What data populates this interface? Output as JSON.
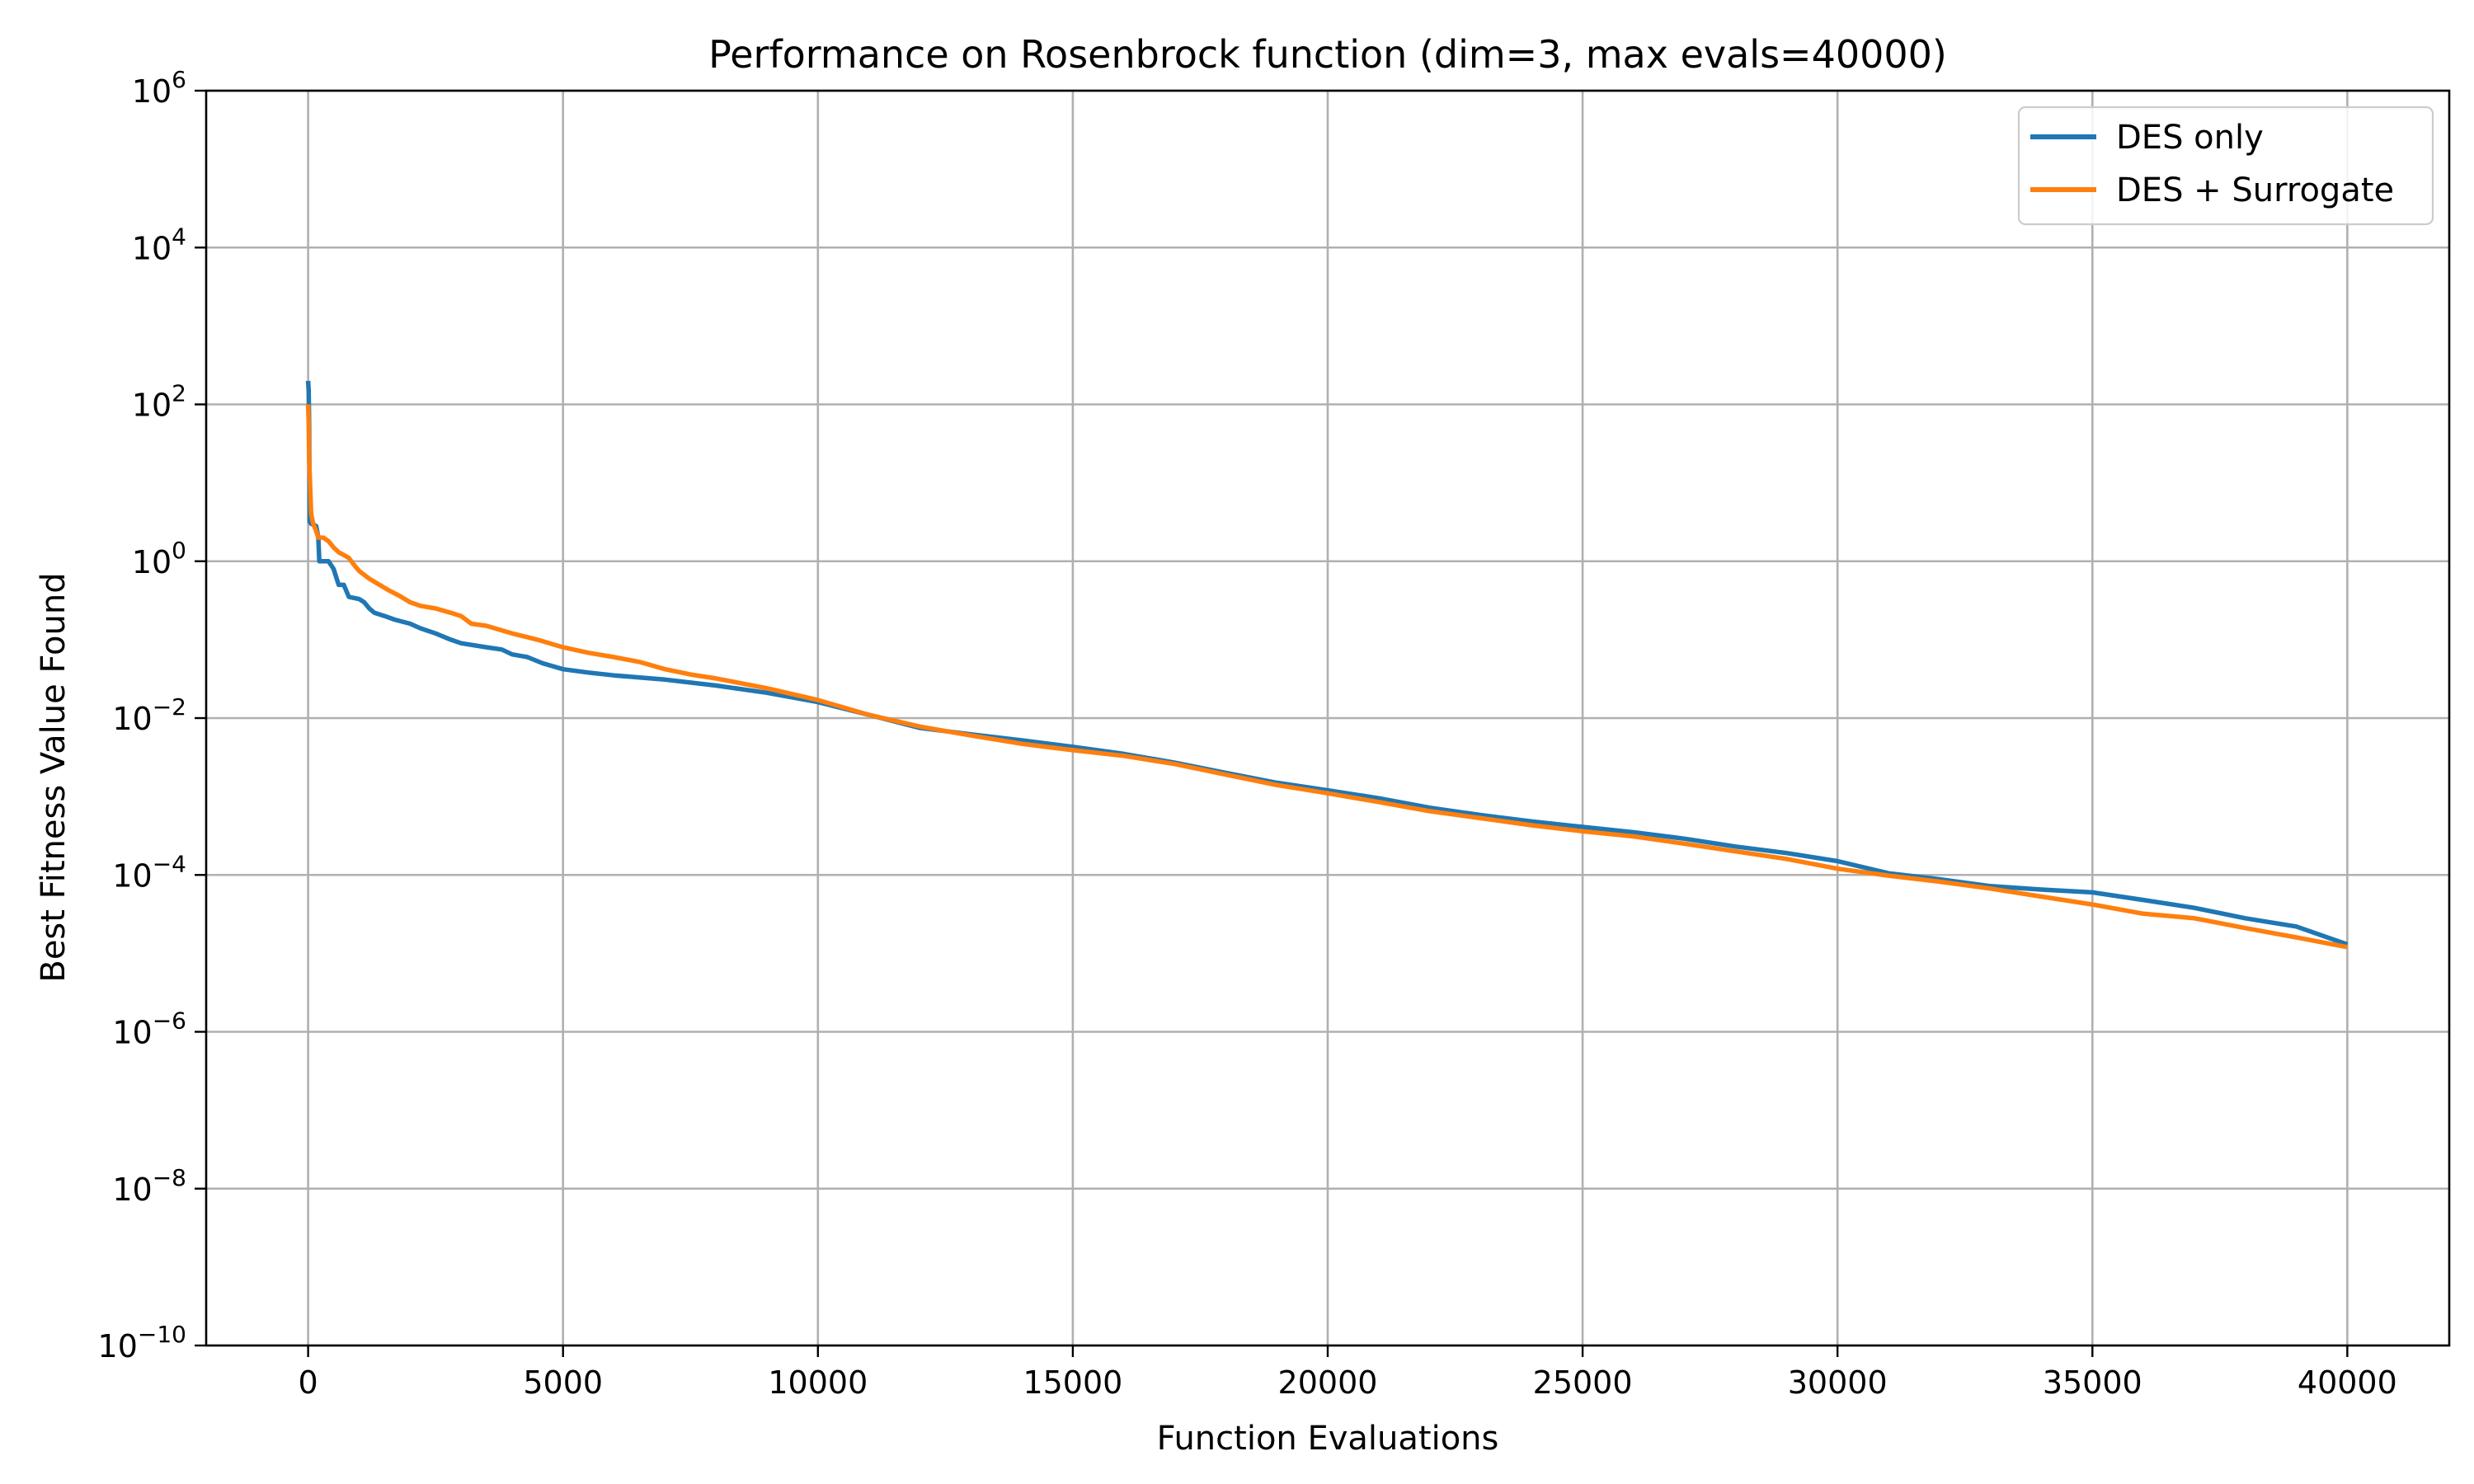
{
  "chart_data": {
    "type": "line",
    "title": "Performance on Rosenbrock function (dim=3, max evals=40000)",
    "xlabel": "Function Evaluations",
    "ylabel": "Best Fitness Value Found",
    "xscale": "linear",
    "yscale": "log",
    "xlim": [
      -2000,
      42000
    ],
    "ylim": [
      1e-10,
      1000000.0
    ],
    "grid": true,
    "legend_position": "top-right",
    "x_ticks": [
      0,
      5000,
      10000,
      15000,
      20000,
      25000,
      30000,
      35000,
      40000
    ],
    "x_tick_labels": [
      "0",
      "5000",
      "10000",
      "15000",
      "20000",
      "25000",
      "30000",
      "35000",
      "40000"
    ],
    "y_ticks": [
      {
        "exp": -10,
        "base": "10",
        "sup": "−10"
      },
      {
        "exp": -8,
        "base": "10",
        "sup": "−8"
      },
      {
        "exp": -6,
        "base": "10",
        "sup": "−6"
      },
      {
        "exp": -4,
        "base": "10",
        "sup": "−4"
      },
      {
        "exp": -2,
        "base": "10",
        "sup": "−2"
      },
      {
        "exp": 0,
        "base": "10",
        "sup": "0"
      },
      {
        "exp": 2,
        "base": "10",
        "sup": "2"
      },
      {
        "exp": 4,
        "base": "10",
        "sup": "4"
      },
      {
        "exp": 6,
        "base": "10",
        "sup": "6"
      }
    ],
    "series": [
      {
        "name": "DES only",
        "color": "#1f77b4",
        "x": [
          0,
          10,
          20,
          30,
          60,
          120,
          160,
          200,
          220,
          300,
          400,
          500,
          600,
          700,
          800,
          1000,
          1100,
          1200,
          1300,
          1500,
          1700,
          2000,
          2200,
          2500,
          2800,
          3000,
          3500,
          3800,
          4000,
          4300,
          4600,
          5000,
          5500,
          6000,
          6500,
          7000,
          8000,
          9000,
          10000,
          11000,
          12000,
          13000,
          14000,
          15000,
          16000,
          17000,
          18000,
          19000,
          20000,
          21000,
          22000,
          23000,
          24000,
          25000,
          26000,
          27000,
          28000,
          29000,
          30000,
          31000,
          32000,
          33000,
          34000,
          35000,
          36000,
          37000,
          38000,
          39000,
          40000
        ],
        "y": [
          200,
          150,
          50,
          3.2,
          3.0,
          2.9,
          2.8,
          2.0,
          1.0,
          1.0,
          1.0,
          0.8,
          0.5,
          0.5,
          0.35,
          0.33,
          0.3,
          0.25,
          0.22,
          0.2,
          0.18,
          0.16,
          0.14,
          0.12,
          0.1,
          0.09,
          0.08,
          0.075,
          0.065,
          0.06,
          0.05,
          0.042,
          0.038,
          0.035,
          0.033,
          0.031,
          0.026,
          0.021,
          0.016,
          0.011,
          0.0075,
          0.0062,
          0.0052,
          0.0043,
          0.0035,
          0.0027,
          0.002,
          0.0015,
          0.0012,
          0.00095,
          0.00072,
          0.00058,
          0.00048,
          0.00041,
          0.00035,
          0.00029,
          0.00023,
          0.00019,
          0.00015,
          0.000105,
          8.8e-05,
          7.2e-05,
          6.5e-05,
          6e-05,
          4.8e-05,
          3.8e-05,
          2.8e-05,
          2.2e-05,
          1.3e-05
        ]
      },
      {
        "name": "DES + Surrogate",
        "color": "#ff7f0e",
        "x": [
          0,
          10,
          20,
          60,
          100,
          150,
          200,
          300,
          400,
          500,
          600,
          700,
          800,
          900,
          1000,
          1200,
          1400,
          1600,
          1800,
          2000,
          2200,
          2500,
          2800,
          3000,
          3200,
          3500,
          4000,
          4500,
          5000,
          5500,
          6000,
          6500,
          7000,
          7500,
          8000,
          9000,
          10000,
          11000,
          12000,
          13000,
          14000,
          15000,
          16000,
          17000,
          18000,
          19000,
          20000,
          21000,
          22000,
          23000,
          24000,
          25000,
          26000,
          27000,
          28000,
          29000,
          30000,
          31000,
          32000,
          33000,
          34000,
          35000,
          36000,
          37000,
          38000,
          39000,
          40000
        ],
        "y": [
          100,
          60,
          20,
          4.0,
          3.0,
          2.5,
          2.0,
          2.0,
          1.8,
          1.5,
          1.3,
          1.2,
          1.1,
          0.9,
          0.75,
          0.6,
          0.5,
          0.42,
          0.36,
          0.3,
          0.27,
          0.25,
          0.22,
          0.2,
          0.16,
          0.15,
          0.12,
          0.1,
          0.08,
          0.068,
          0.06,
          0.052,
          0.042,
          0.036,
          0.032,
          0.024,
          0.017,
          0.011,
          0.0078,
          0.006,
          0.0047,
          0.0039,
          0.0033,
          0.0026,
          0.0019,
          0.0014,
          0.0011,
          0.00085,
          0.00065,
          0.00053,
          0.00043,
          0.00036,
          0.00031,
          0.00025,
          0.0002,
          0.00016,
          0.00012,
          9.8e-05,
          8.2e-05,
          6.7e-05,
          5.3e-05,
          4.2e-05,
          3.2e-05,
          2.8e-05,
          2.1e-05,
          1.6e-05,
          1.2e-05
        ]
      }
    ]
  }
}
